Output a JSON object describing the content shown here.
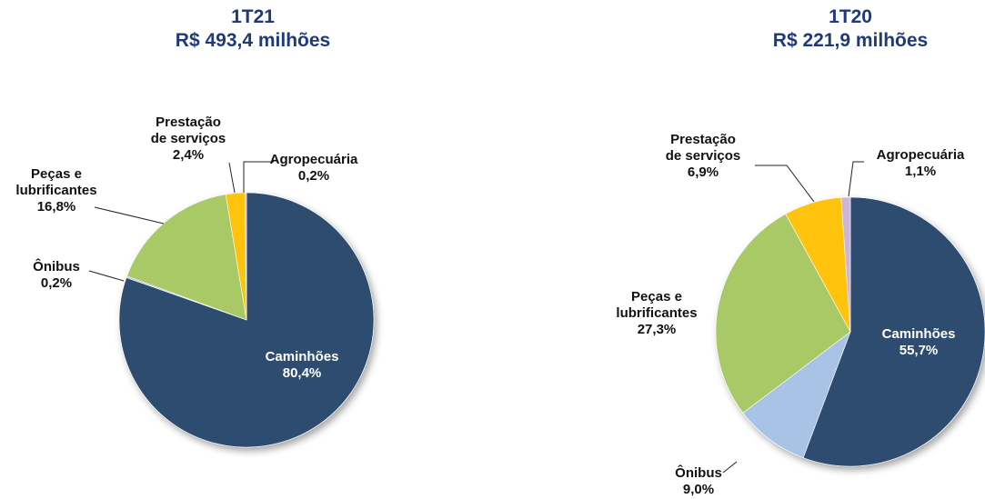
{
  "chart_data": [
    {
      "type": "pie",
      "title": "1T21",
      "subtitle": "R$ 493,4 milhões",
      "categories": [
        "Caminhões",
        "Ônibus",
        "Peças e\nlubrificantes",
        "Prestação\nde serviços",
        "Agropecuária"
      ],
      "values": [
        80.4,
        0.2,
        16.8,
        2.4,
        0.2
      ],
      "value_labels": [
        "80,4%",
        "0,2%",
        "16,8%",
        "2,4%",
        "0,2%"
      ],
      "colors": [
        "#2f4b70",
        "#a9c3e6",
        "#a9c866",
        "#ffc20e",
        "#c9b6d8"
      ]
    },
    {
      "type": "pie",
      "title": "1T20",
      "subtitle": "R$ 221,9 milhões",
      "categories": [
        "Caminhões",
        "Ônibus",
        "Peças e\nlubrificantes",
        "Prestação\nde serviços",
        "Agropecuária"
      ],
      "values": [
        55.7,
        9.0,
        27.3,
        6.9,
        1.1
      ],
      "value_labels": [
        "55,7%",
        "9,0%",
        "27,3%",
        "6,9%",
        "1,1%"
      ],
      "colors": [
        "#2f4b70",
        "#a9c3e6",
        "#a9c866",
        "#ffc20e",
        "#c9b6d8"
      ]
    }
  ]
}
